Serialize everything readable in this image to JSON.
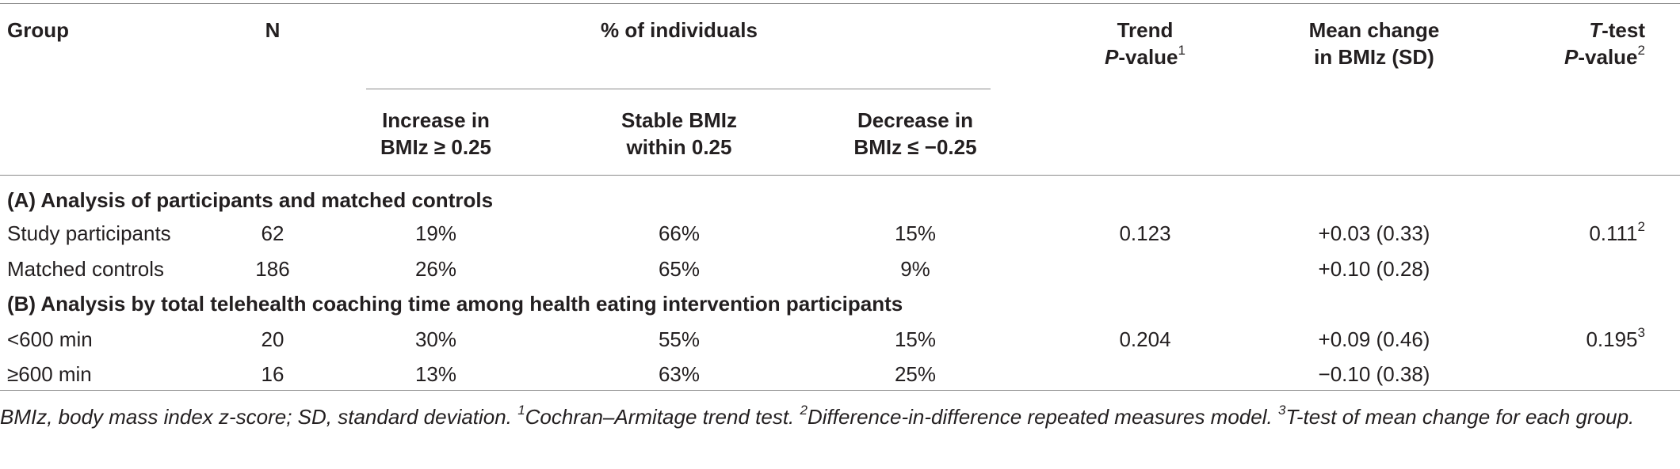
{
  "header": {
    "group": "Group",
    "n": "N",
    "pct_individuals": "% of individuals",
    "trend_line1": "Trend",
    "trend_p": "P",
    "trend_rest": "-value",
    "trend_sup": "1",
    "mean_line1": "Mean change",
    "mean_line2": "in BMIz (SD)",
    "ttest_t": "T",
    "ttest_rest": "-test",
    "ttest_p": "P",
    "ttest_value": "-value",
    "ttest_sup": "2",
    "increase_line1": "Increase in",
    "increase_line2": "BMIz ≥ 0.25",
    "stable_line1": "Stable BMIz",
    "stable_line2": "within 0.25",
    "decrease_line1": "Decrease in",
    "decrease_line2": "BMIz ≤ −0.25"
  },
  "sections": [
    {
      "title": "(A) Analysis of participants and matched controls",
      "rows": [
        {
          "group": "Study participants",
          "n": "62",
          "increase": "19%",
          "stable": "66%",
          "decrease": "15%",
          "trend": "0.123",
          "mean": "+0.03 (0.33)",
          "ttest": "0.111",
          "ttest_sup": "2"
        },
        {
          "group": "Matched controls",
          "n": "186",
          "increase": "26%",
          "stable": "65%",
          "decrease": "9%",
          "trend": "",
          "mean": "+0.10 (0.28)",
          "ttest": "",
          "ttest_sup": ""
        }
      ]
    },
    {
      "title": "(B) Analysis by total telehealth coaching time among health eating intervention participants",
      "rows": [
        {
          "group": "<600 min",
          "n": "20",
          "increase": "30%",
          "stable": "55%",
          "decrease": "15%",
          "trend": "0.204",
          "mean": "+0.09 (0.46)",
          "ttest": "0.195",
          "ttest_sup": "3"
        },
        {
          "group": "≥600 min",
          "n": "16",
          "increase": "13%",
          "stable": "63%",
          "decrease": "25%",
          "trend": "",
          "mean": "−0.10 (0.38)",
          "ttest": "",
          "ttest_sup": ""
        }
      ]
    }
  ],
  "footnote": {
    "text": "BMIz, body mass index z-score; SD, standard deviation. ",
    "fn1_sup": "1",
    "fn1": "Cochran–Armitage trend test. ",
    "fn2_sup": "2",
    "fn2": "Difference-in-difference repeated measures model. ",
    "fn3_sup": "3",
    "fn3": "T-test of mean change for each group."
  }
}
